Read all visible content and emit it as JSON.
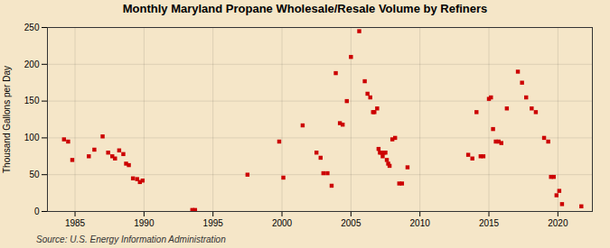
{
  "chart_data": {
    "type": "scatter",
    "title": "Monthly Maryland Propane Wholesale/Resale Volume by Refiners",
    "ylabel": "Thousand Gallons per Day",
    "annotations": [
      "Source: U.S. Energy Information Administration"
    ],
    "color": "#cc0000",
    "marker": "square",
    "grid": true,
    "xlim": [
      1983.0,
      2022.5
    ],
    "ylim": [
      0,
      250
    ],
    "xticks": [
      1985,
      1990,
      1995,
      2000,
      2005,
      2010,
      2015,
      2020
    ],
    "yticks": [
      0,
      50,
      100,
      150,
      200,
      250
    ],
    "x": [
      1984.2,
      1984.5,
      1984.8,
      1986.0,
      1986.4,
      1987.0,
      1987.4,
      1987.7,
      1987.9,
      1988.2,
      1988.5,
      1988.7,
      1988.9,
      1989.2,
      1989.5,
      1989.7,
      1989.9,
      1993.5,
      1993.7,
      1997.5,
      1999.8,
      2000.1,
      2001.5,
      2002.5,
      2002.8,
      2003.0,
      2003.3,
      2003.6,
      2003.9,
      2004.2,
      2004.4,
      2004.7,
      2005.0,
      2005.6,
      2006.0,
      2006.2,
      2006.4,
      2006.6,
      2006.7,
      2006.9,
      2007.0,
      2007.1,
      2007.2,
      2007.3,
      2007.4,
      2007.5,
      2007.6,
      2007.7,
      2007.8,
      2008.0,
      2008.2,
      2008.5,
      2008.7,
      2009.1,
      2013.5,
      2013.8,
      2014.1,
      2014.4,
      2014.6,
      2015.0,
      2015.15,
      2015.3,
      2015.5,
      2015.7,
      2015.9,
      2016.3,
      2017.1,
      2017.4,
      2017.7,
      2018.1,
      2018.4,
      2019.0,
      2019.3,
      2019.5,
      2019.7,
      2019.9,
      2020.1,
      2020.3,
      2021.7
    ],
    "values": [
      98,
      95,
      70,
      75,
      84,
      102,
      80,
      75,
      72,
      83,
      78,
      65,
      63,
      45,
      44,
      40,
      42,
      2,
      2,
      50,
      95,
      46,
      117,
      80,
      73,
      52,
      52,
      35,
      188,
      120,
      118,
      150,
      210,
      245,
      177,
      160,
      155,
      135,
      135,
      140,
      85,
      80,
      80,
      75,
      80,
      80,
      70,
      65,
      62,
      98,
      100,
      38,
      38,
      60,
      77,
      72,
      135,
      75,
      75,
      153,
      155,
      112,
      95,
      95,
      93,
      140,
      190,
      175,
      155,
      140,
      135,
      100,
      95,
      47,
      47,
      22,
      28,
      10,
      7
    ]
  }
}
